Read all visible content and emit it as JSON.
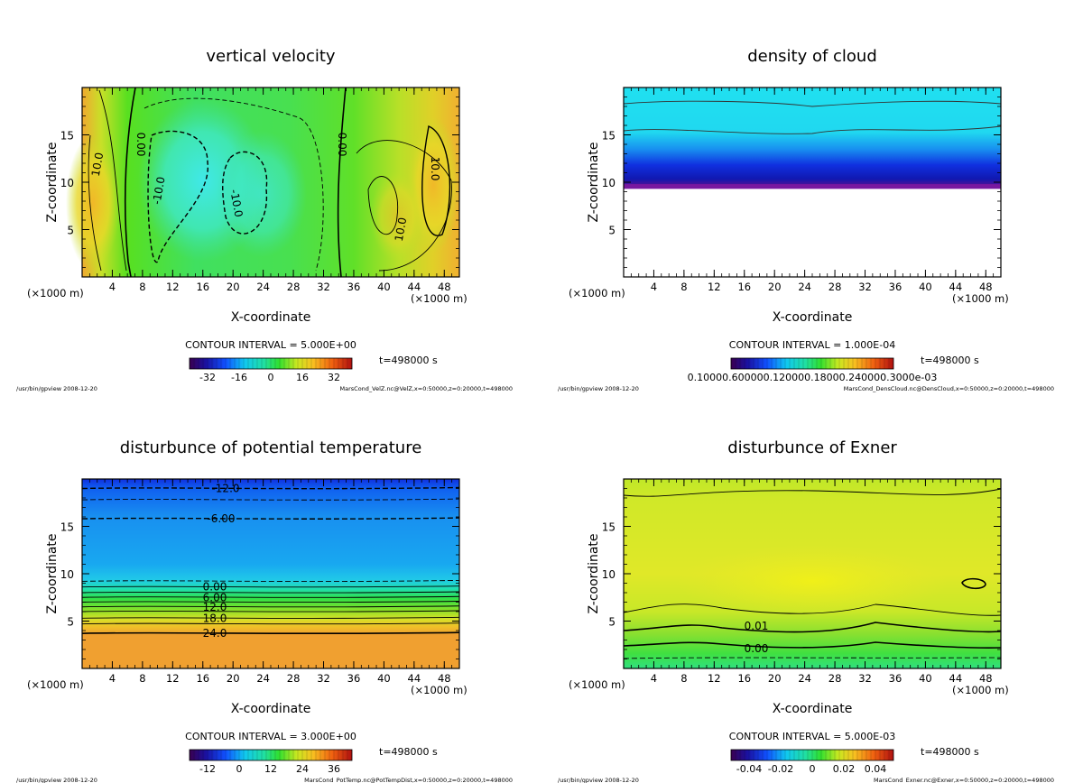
{
  "chart_data": [
    {
      "type": "heatmap",
      "title": "vertical velocity",
      "xlabel": "X-coordinate",
      "ylabel": "Z-coordinate",
      "x_unit": "(×1000 m)",
      "xlim": [
        0,
        50
      ],
      "ylim": [
        0,
        20
      ],
      "xticks": [
        4,
        8,
        12,
        16,
        20,
        24,
        28,
        32,
        36,
        40,
        44,
        48
      ],
      "yticks": [
        5,
        10,
        15
      ],
      "contour_interval": "CONTOUR INTERVAL = 5.000E+00",
      "contour_labels": [
        "10.0",
        "0.00",
        "-10.0",
        "-10.0",
        "0.00",
        "10.0",
        "10.0"
      ],
      "colorbar_ticks": [
        "-32",
        "-16",
        "0",
        "16",
        "32"
      ],
      "time": "t=498000 s",
      "footer_left": "/usr/bin/gpview  2008-12-20",
      "footer_right": "MarsCond_VelZ.nc@VelZ,x=0:50000,z=0:20000,t=498000"
    },
    {
      "type": "heatmap",
      "title": "density of cloud",
      "xlabel": "X-coordinate",
      "ylabel": "Z-coordinate",
      "x_unit": "(×1000 m)",
      "xlim": [
        0,
        50
      ],
      "ylim": [
        0,
        20
      ],
      "xticks": [
        4,
        8,
        12,
        16,
        20,
        24,
        28,
        32,
        36,
        40,
        44,
        48
      ],
      "yticks": [
        5,
        10,
        15
      ],
      "contour_interval": "CONTOUR INTERVAL = 1.000E-04",
      "contour_labels": [],
      "colorbar_ticks": [
        "0.10000.600000.120000.18000.240000.3000e-03"
      ],
      "time": "t=498000 s",
      "footer_left": "/usr/bin/gpview  2008-12-20",
      "footer_right": "MarsCond_DensCloud.nc@DensCloud,x=0:50000,z=0:20000,t=498000"
    },
    {
      "type": "heatmap",
      "title": "disturbunce of potential temperature",
      "xlabel": "X-coordinate",
      "ylabel": "Z-coordinate",
      "x_unit": "(×1000 m)",
      "xlim": [
        0,
        50
      ],
      "ylim": [
        0,
        20
      ],
      "xticks": [
        4,
        8,
        12,
        16,
        20,
        24,
        28,
        32,
        36,
        40,
        44,
        48
      ],
      "yticks": [
        5,
        10,
        15
      ],
      "contour_interval": "CONTOUR INTERVAL = 3.000E+00",
      "contour_labels": [
        "-12.0",
        "-6.00",
        "0.00",
        "6.00",
        "12.0",
        "18.0",
        "24.0"
      ],
      "colorbar_ticks": [
        "-12",
        "0",
        "12",
        "24",
        "36"
      ],
      "time": "t=498000 s",
      "footer_left": "/usr/bin/gpview  2008-12-20",
      "footer_right": "MarsCond_PotTemp.nc@PotTempDist,x=0:50000,z=0:20000,t=498000"
    },
    {
      "type": "heatmap",
      "title": "disturbunce of Exner",
      "xlabel": "X-coordinate",
      "ylabel": "Z-coordinate",
      "x_unit": "(×1000 m)",
      "xlim": [
        0,
        50
      ],
      "ylim": [
        0,
        20
      ],
      "xticks": [
        4,
        8,
        12,
        16,
        20,
        24,
        28,
        32,
        36,
        40,
        44,
        48
      ],
      "yticks": [
        5,
        10,
        15
      ],
      "contour_interval": "CONTOUR INTERVAL = 5.000E-03",
      "contour_labels": [
        "0.01",
        "0.00"
      ],
      "colorbar_ticks": [
        "-0.04",
        "-0.02",
        "0",
        "0.02",
        "0.04"
      ],
      "time": "t=498000 s",
      "footer_left": "/usr/bin/gpview  2008-12-20",
      "footer_right": "MarsCond_Exner.nc@Exner,x=0:50000,z=0:20000,t=498000"
    }
  ]
}
